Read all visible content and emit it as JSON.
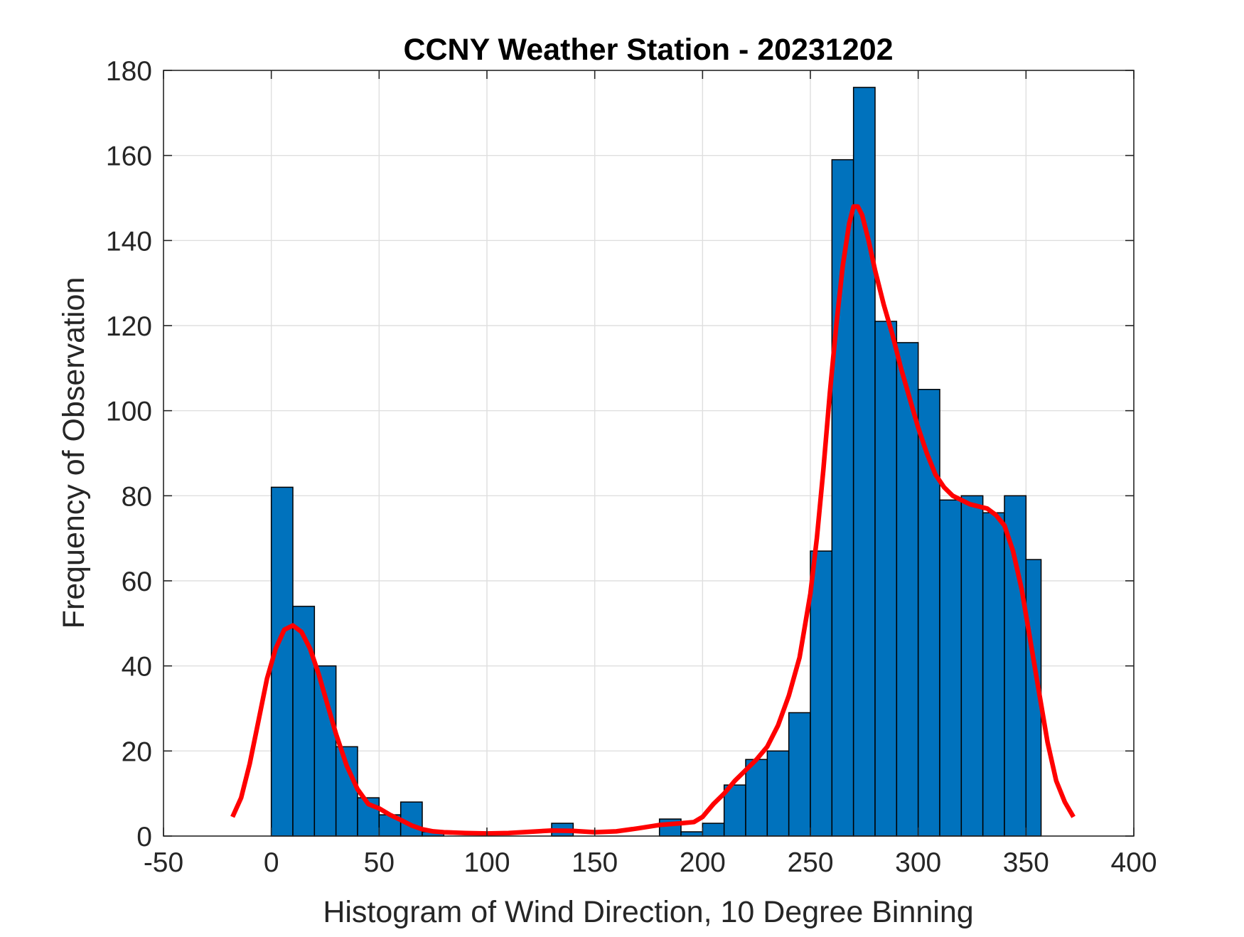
{
  "chart_data": {
    "type": "bar",
    "title": "CCNY Weather Station - 20231202",
    "xlabel": "Histogram of Wind Direction, 10 Degree Binning",
    "ylabel": "Frequency of Observation",
    "xlim": [
      -50,
      400
    ],
    "ylim": [
      0,
      180
    ],
    "xticks": [
      "-50",
      "0",
      "50",
      "100",
      "150",
      "200",
      "250",
      "300",
      "350",
      "400"
    ],
    "yticks": [
      "0",
      "20",
      "40",
      "60",
      "80",
      "100",
      "120",
      "140",
      "160",
      "180"
    ],
    "xtick_values": [
      -50,
      0,
      50,
      100,
      150,
      200,
      250,
      300,
      350,
      400
    ],
    "ytick_values": [
      0,
      20,
      40,
      60,
      80,
      100,
      120,
      140,
      160,
      180
    ],
    "grid": true,
    "bin_edges": [
      0,
      10,
      20,
      30,
      40,
      50,
      60,
      70,
      80,
      90,
      100,
      110,
      120,
      130,
      140,
      150,
      160,
      170,
      180,
      190,
      200,
      210,
      220,
      230,
      240,
      250,
      260,
      270,
      280,
      290,
      300,
      310,
      320,
      330,
      340,
      350,
      357
    ],
    "values": [
      82,
      54,
      40,
      21,
      9,
      5,
      8,
      1,
      0,
      0,
      0,
      0,
      0,
      3,
      0,
      0,
      0,
      0,
      4,
      1,
      3,
      12,
      18,
      20,
      29,
      67,
      159,
      176,
      121,
      116,
      105,
      79,
      80,
      76,
      80,
      65
    ],
    "bar_color": "#0072BD",
    "bar_edge_color": "#000000",
    "fit_curve": {
      "color": "#FF0000",
      "x": [
        -18,
        -14,
        -10,
        -6,
        -2,
        2,
        6,
        10,
        14,
        18,
        22,
        26,
        30,
        35,
        40,
        45,
        50,
        55,
        60,
        65,
        70,
        75,
        80,
        90,
        100,
        110,
        120,
        130,
        140,
        150,
        160,
        170,
        180,
        190,
        196,
        200,
        205,
        210,
        215,
        220,
        225,
        230,
        235,
        240,
        245,
        250,
        253,
        256,
        259,
        262,
        265,
        268,
        270,
        272,
        274,
        277,
        280,
        284,
        288,
        292,
        296,
        300,
        304,
        308,
        312,
        316,
        320,
        324,
        328,
        332,
        336,
        340,
        344,
        348,
        352,
        356,
        360,
        364,
        368,
        372
      ],
      "y": [
        4.5,
        9,
        17,
        27,
        37,
        44,
        48.5,
        49.5,
        48,
        44,
        38,
        31,
        24,
        16.5,
        11,
        7.5,
        6.5,
        5,
        3.8,
        2.5,
        1.6,
        1.1,
        0.9,
        0.7,
        0.6,
        0.7,
        1.0,
        1.3,
        1.2,
        0.9,
        1.1,
        1.8,
        2.6,
        3.0,
        3.3,
        4.5,
        7.5,
        10,
        13,
        15.5,
        18,
        21,
        26,
        33,
        42,
        57,
        70,
        86,
        104,
        120,
        134,
        144,
        148,
        148,
        146,
        140,
        133,
        125,
        118,
        110,
        103,
        96,
        90,
        85,
        82,
        80,
        79,
        78,
        77.5,
        77,
        75.5,
        73,
        67,
        58,
        46,
        34,
        22,
        13,
        8,
        4.5
      ]
    }
  }
}
